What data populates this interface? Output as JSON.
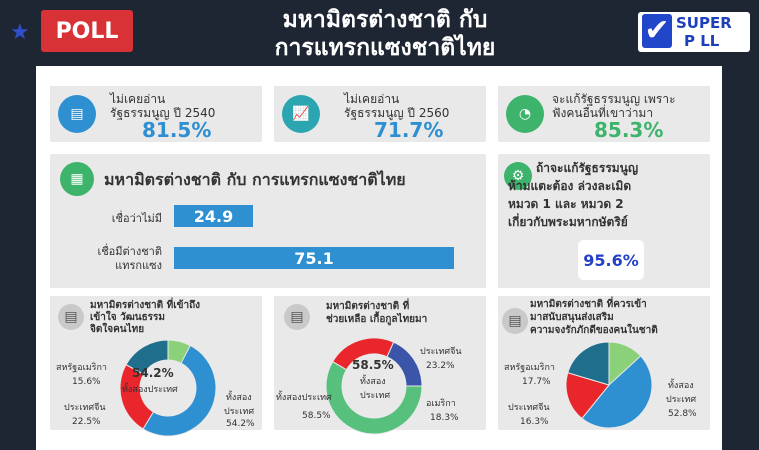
{
  "header": {
    "poll_badge": "POLL",
    "title_line1": "มหามิตรต่างชาติ กับ",
    "title_line2": "การแทรกแซงชาติไทย",
    "logo_line1": "SUPER",
    "logo_line2": "P LL",
    "star_icon": "star-icon"
  },
  "top_cards": [
    {
      "label_line1": "ไม่เคยอ่าน",
      "label_line2": "รัฐธรรมนูญ ปี 2540",
      "value": "81.5%",
      "color": "#2e8fd1",
      "icon_color": "#2e8fd1"
    },
    {
      "label_line1": "ไม่เคยอ่าน",
      "label_line2": "รัฐธรรมนูญ ปี 2560",
      "value": "71.7%",
      "color": "#2e8fd1",
      "icon_color": "#2ba6b0"
    },
    {
      "label_line1": "จะแก้รัฐธรรมนูญ เพราะ",
      "label_line2": "ฟังคนอื่นที่เขาว่ามา",
      "value": "85.3%",
      "color": "#3db36b",
      "icon_color": "#3db36b"
    }
  ],
  "bar_card": {
    "title": "มหามิตรต่างชาติ กับ การแทรกแซงชาติไทย",
    "bar1_label": "เชื่อว่าไม่มี",
    "bar1_value": "24.9",
    "bar2_label_line1": "เชื่อมีต่างชาติ",
    "bar2_label_line2": "แทรกแซง",
    "bar2_value": "75.1"
  },
  "side_card": {
    "line1": "ถ้าจะแก้รัฐธรรมนูญ",
    "line2": "ห้ามแตะต้อง ล่วงละเมิด",
    "line3": "หมวด 1 และ หมวด 2",
    "line4": "เกี่ยวกับพระมหากษัตริย์",
    "value": "95.6%"
  },
  "donut1": {
    "title_line1": "มหามิตรต่างชาติ ที่เข้าถึง",
    "title_line2": "เข้าใจ วัฒนธรรม",
    "title_line3": "จิตใจคนไทย",
    "center_value": "54.2%",
    "center_label": "ทั้งสองประเทศ",
    "label_us": "สหรัฐอเมริกา",
    "label_us_pct": "15.6%",
    "label_cn": "ประเทศจีน",
    "label_cn_pct": "22.5%",
    "label_both": "ทั้งสอง",
    "label_both2": "ประเทศ",
    "label_both_pct": "54.2%"
  },
  "donut2": {
    "title_line1": "มหามิตรต่างชาติ ที่",
    "title_line2": "ช่วยเหลือ เกื้อกูลไทยมา",
    "center_value": "58.5%",
    "center_label_line1": "ทั้งสอง",
    "center_label_line2": "ประเทศ",
    "label_cn": "ประเทศจีน",
    "label_cn_pct": "23.2%",
    "label_us": "อเมริกา",
    "label_us_pct": "18.3%",
    "label_both": "ทั้งสองประเทศ",
    "label_both_pct": "58.5%"
  },
  "donut3": {
    "title_line1": "มหามิตรต่างชาติ ที่ควรเข้า",
    "title_line2": "มาสนับสนุนส่งเสริม",
    "title_line3": "ความจงรักภักดีของคนในชาติ",
    "label_us": "สหรัฐอเมริกา",
    "label_us_pct": "17.7%",
    "label_cn": "ประเทศจีน",
    "label_cn_pct": "16.3%",
    "label_both": "ทั้งสอง",
    "label_both2": "ประเทศ",
    "label_both_pct": "52.8%"
  },
  "chart_data": [
    {
      "type": "bar",
      "categories": [
        "เชื่อว่าไม่มี",
        "เชื่อมีต่างชาติ แทรกแซง"
      ],
      "values": [
        24.9,
        75.1
      ],
      "title": "มหามิตรต่างชาติ กับ การแทรกแซงชาติไทย"
    },
    {
      "type": "pie",
      "categories": [
        "ทั้งสองประเทศ",
        "ประเทศจีน",
        "สหรัฐอเมริกา"
      ],
      "values": [
        54.2,
        22.5,
        15.6
      ],
      "colors": [
        "#2e8fd1",
        "#e8262b",
        "#1f6e8c"
      ]
    },
    {
      "type": "pie",
      "categories": [
        "ทั้งสองประเทศ",
        "ประเทศจีน",
        "อเมริกา"
      ],
      "values": [
        58.5,
        23.2,
        18.3
      ],
      "colors": [
        "#57c07c",
        "#e8262b",
        "#3b56a8"
      ]
    },
    {
      "type": "pie",
      "categories": [
        "ทั้งสองประเทศ",
        "ประเทศจีน",
        "สหรัฐอเมริกา"
      ],
      "values": [
        52.8,
        16.3,
        17.7
      ],
      "colors": [
        "#2e8fd1",
        "#e8262b",
        "#1f6e8c"
      ]
    }
  ]
}
